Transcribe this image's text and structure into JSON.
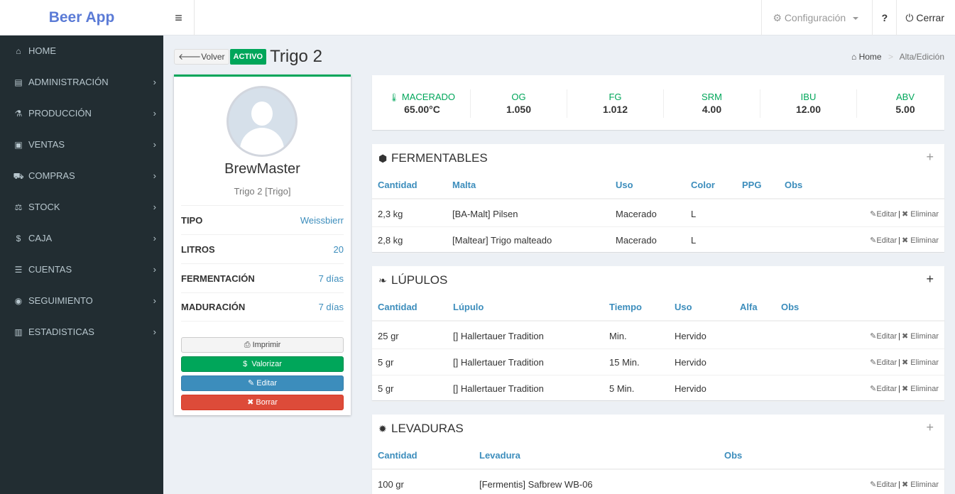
{
  "app": {
    "name": "Beer App"
  },
  "topnav": {
    "menu_icon": "bars-icon",
    "config_label": "Configuración",
    "help_label": "?",
    "close_label": "Cerrar"
  },
  "sidebar": {
    "items": [
      {
        "label": "HOME",
        "icon": "home-icon",
        "glyph": "⌂"
      },
      {
        "label": "ADMINISTRACIÓN",
        "icon": "admin-icon",
        "glyph": "▤"
      },
      {
        "label": "PRODUCCIÓN",
        "icon": "flask-icon",
        "glyph": "⚗"
      },
      {
        "label": "VENTAS",
        "icon": "money-icon",
        "glyph": "▣"
      },
      {
        "label": "COMPRAS",
        "icon": "cart-icon",
        "glyph": "⛟"
      },
      {
        "label": "STOCK",
        "icon": "stock-icon",
        "glyph": "⚖"
      },
      {
        "label": "CAJA",
        "icon": "dollar-icon",
        "glyph": "$"
      },
      {
        "label": "CUENTAS",
        "icon": "list-icon",
        "glyph": "☰"
      },
      {
        "label": "SEGUIMIENTO",
        "icon": "target-icon",
        "glyph": "◉"
      },
      {
        "label": "ESTADISTICAS",
        "icon": "chart-icon",
        "glyph": "▥"
      }
    ]
  },
  "header": {
    "back_label": "Volver",
    "status_badge": "ACTIVO",
    "title": "Trigo 2",
    "breadcrumb": {
      "home": "Home",
      "current": "Alta/Edición"
    }
  },
  "profile": {
    "name": "BrewMaster",
    "subtitle": "Trigo 2 [Trigo]",
    "details": [
      {
        "key": "TIPO",
        "value": "Weissbierr"
      },
      {
        "key": "LITROS",
        "value": "20"
      },
      {
        "key": "FERMENTACIÓN",
        "value": "7 días"
      },
      {
        "key": "MADURACIÓN",
        "value": "7 días"
      }
    ],
    "buttons": {
      "print": "Imprimir",
      "valorizar": "Valorizar",
      "edit": "Editar",
      "delete": "Borrar"
    }
  },
  "stats": [
    {
      "label": "MACERADO",
      "value": "65.00°C"
    },
    {
      "label": "OG",
      "value": "1.050"
    },
    {
      "label": "FG",
      "value": "1.012"
    },
    {
      "label": "SRM",
      "value": "4.00"
    },
    {
      "label": "IBU",
      "value": "12.00"
    },
    {
      "label": "ABV",
      "value": "5.00"
    }
  ],
  "actions": {
    "edit": "Editar",
    "delete": "Eliminar",
    "sep": "|"
  },
  "fermentables": {
    "title": "FERMENTABLES",
    "headers": [
      "Cantidad",
      "Malta",
      "Uso",
      "Color",
      "PPG",
      "Obs"
    ],
    "rows": [
      [
        "2,3 kg",
        "[BA-Malt] Pilsen",
        "Macerado",
        "L",
        "",
        ""
      ],
      [
        "2,8 kg",
        "[Maltear] Trigo malteado",
        "Macerado",
        "L",
        "",
        ""
      ]
    ]
  },
  "lupulos": {
    "title": "LÚPULOS",
    "headers": [
      "Cantidad",
      "Lúpulo",
      "Tiempo",
      "Uso",
      "Alfa",
      "Obs"
    ],
    "rows": [
      [
        "25 gr",
        "[] Hallertauer Tradition",
        "Min.",
        "Hervido",
        "",
        ""
      ],
      [
        "5 gr",
        "[] Hallertauer Tradition",
        "15 Min.",
        "Hervido",
        "",
        ""
      ],
      [
        "5 gr",
        "[] Hallertauer Tradition",
        "5 Min.",
        "Hervido",
        "",
        ""
      ]
    ]
  },
  "levaduras": {
    "title": "LEVADURAS",
    "headers": [
      "Cantidad",
      "Levadura",
      "Obs"
    ],
    "rows": [
      [
        "100 gr",
        "[Fermentis] Safbrew WB-06",
        ""
      ]
    ]
  }
}
